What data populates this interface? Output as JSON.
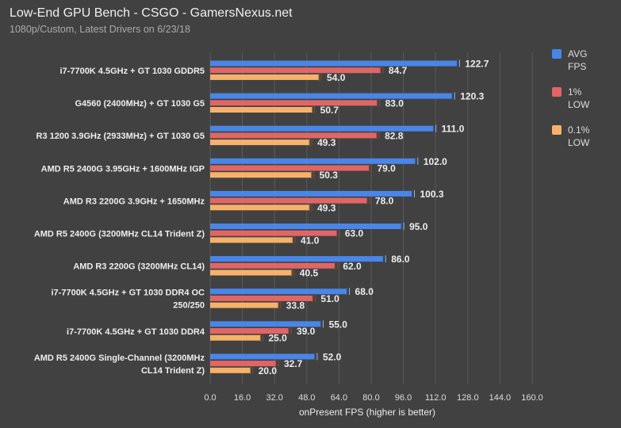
{
  "chart_data": {
    "type": "bar",
    "orientation": "horizontal",
    "title": "Low-End GPU Bench - CSGO - GamersNexus.net",
    "subtitle": "1080p/Custom, Latest Drivers on 6/23/18",
    "xlabel": "onPresent FPS (higher is better)",
    "xlim": [
      0,
      160
    ],
    "xticks": [
      "0.0",
      "16.0",
      "32.0",
      "48.0",
      "64.0",
      "80.0",
      "96.0",
      "112.0",
      "128.0",
      "144.0",
      "160.0"
    ],
    "grid": true,
    "legend_position": "right",
    "categories": [
      [
        "i7-7700K 4.5GHz + GT 1030 GDDR5"
      ],
      [
        "G4560 (2400MHz) + GT 1030 G5"
      ],
      [
        "R3 1200 3.9GHz (2933MHz) + GT 1030 G5"
      ],
      [
        "AMD R5 2400G 3.95GHz + 1600MHz IGP"
      ],
      [
        "AMD R3 2200G 3.9GHz + 1650MHz"
      ],
      [
        "AMD R5 2400G (3200MHz CL14 Trident Z)"
      ],
      [
        "AMD R3 2200G (3200MHz CL14)"
      ],
      [
        "i7-7700K 4.5GHz + GT 1030 DDR4 OC",
        "250/250"
      ],
      [
        "i7-7700K 4.5GHz + GT 1030 DDR4"
      ],
      [
        "AMD R5 2400G Single-Channel (3200MHz",
        "CL14 Trident Z)"
      ]
    ],
    "series": [
      {
        "name": [
          "AVG",
          "FPS"
        ],
        "color": "#4a86e8",
        "values": [
          122.7,
          120.3,
          111.0,
          102.0,
          100.3,
          95.0,
          86.0,
          68.0,
          55.0,
          52.0
        ]
      },
      {
        "name": [
          "1%",
          "LOW"
        ],
        "color": "#e06666",
        "values": [
          84.7,
          83.0,
          82.8,
          79.0,
          78.0,
          63.0,
          62.0,
          51.0,
          39.0,
          32.7
        ]
      },
      {
        "name": [
          "0.1%",
          "LOW"
        ],
        "color": "#f6b26b",
        "values": [
          54.0,
          50.7,
          49.3,
          50.3,
          49.3,
          41.0,
          40.5,
          33.8,
          25.0,
          20.0
        ]
      }
    ]
  }
}
